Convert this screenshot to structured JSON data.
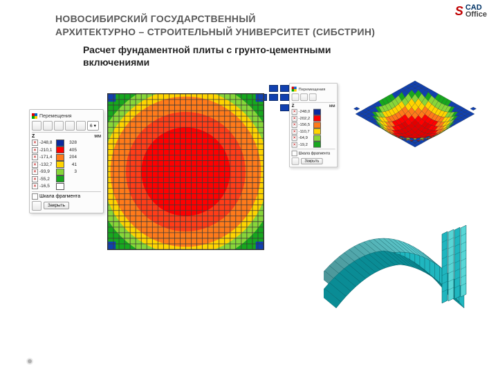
{
  "university": {
    "l1": "НОВОСИБИРСКИЙ ГОСУДАРСТВЕННЫЙ",
    "l2": "АРХИТЕКТУРНО – СТРОИТЕЛЬНЫЙ УНИВЕРСИТЕТ (СИБСТРИН)"
  },
  "logo": {
    "s": "S",
    "cad": "CAD",
    "office": "Office"
  },
  "subtitle": "Расчет фундаментной плиты с грунто-цементными включениями",
  "legend": {
    "title": "Перемещения",
    "axis": "Z",
    "units": "мм",
    "select_value": "6",
    "scale_label": "Шкала фрагмента",
    "close": "Закрыть",
    "rows": [
      {
        "v": "-248,8",
        "c": "#0a2a9e",
        "cnt": "328"
      },
      {
        "v": "-210,1",
        "c": "#ff0000",
        "cnt": "405"
      },
      {
        "v": "-171,4",
        "c": "#ff7a1a",
        "cnt": "204"
      },
      {
        "v": "-132,7",
        "c": "#ffd400",
        "cnt": "41"
      },
      {
        "v": "-93,9",
        "c": "#87d639",
        "cnt": "3"
      },
      {
        "v": "-55,2",
        "c": "#17a81e",
        "cnt": ""
      },
      {
        "v": "-16,5",
        "c": "#ffffff",
        "cnt": ""
      }
    ]
  },
  "legend2": {
    "title": "Перемещения",
    "axis": "Z",
    "units": "мм",
    "scale_label": "Шкала фрагмента",
    "close": "Закрыть",
    "rows": [
      {
        "v": "-248,0",
        "c": "#0a2a9e"
      },
      {
        "v": "-202,2",
        "c": "#ff0000"
      },
      {
        "v": "-156,5",
        "c": "#ff7a1a"
      },
      {
        "v": "-110,7",
        "c": "#ffd400"
      },
      {
        "v": "-64,9",
        "c": "#87d639"
      },
      {
        "v": "-19,2",
        "c": "#17a81e"
      }
    ]
  },
  "plan": {
    "grid": {
      "n": 28,
      "color": "#3a3a3a",
      "weight": 0.35
    },
    "bg": "#17a81e",
    "bands": [
      {
        "r": 1.0,
        "c": "#17a81e"
      },
      {
        "r": 0.95,
        "c": "#87d639"
      },
      {
        "r": 0.86,
        "c": "#ffd400"
      },
      {
        "r": 0.78,
        "c": "#ff7a1a"
      },
      {
        "r": 0.62,
        "c": "#ff3d18"
      },
      {
        "r": 0.46,
        "c": "#ff0000"
      }
    ],
    "corner_color": "#1040b0",
    "sat_color": "#1040b0"
  },
  "surface": {
    "colors": {
      "blue": "#1040b0",
      "green": "#17a81e",
      "lime": "#87d639",
      "yellow": "#ffd400",
      "orange": "#ff7a1a",
      "red": "#ff0000",
      "redd": "#e30000"
    },
    "mesh": "#2b2b2b"
  },
  "beam": {
    "face_light": "#58d6d6",
    "face": "#1fb6bf",
    "face_dark": "#0a8c95",
    "edge": "#074e54"
  }
}
